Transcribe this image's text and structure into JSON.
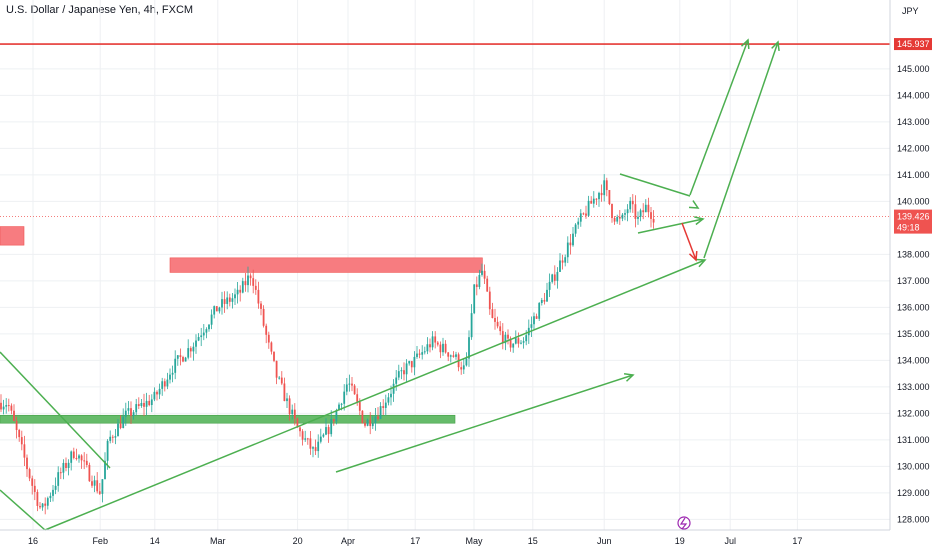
{
  "header": {
    "title": "U.S. Dollar / Japanese Yen, 4h, FXCM"
  },
  "axis": {
    "currency": "JPY"
  },
  "price_tags": {
    "resistance": "145.937",
    "current": "139.426",
    "countdown": "49:18"
  },
  "colors": {
    "up": "#26a69a",
    "down": "#ef5350",
    "green_draw": "#4caf50",
    "red_draw": "#e53935",
    "red_zone": "#f77c80",
    "green_zone": "#66bb6a",
    "grid": "#eef0f3",
    "current_tag": "#ef5350",
    "resistance_tag": "#e53935"
  },
  "icons": {
    "event_marker": "lightning-icon"
  },
  "chart_data": {
    "type": "candlestick",
    "ylim": [
      127.6,
      147.6
    ],
    "y_ticks": [
      "145.000",
      "144.000",
      "143.000",
      "142.000",
      "141.000",
      "140.000",
      "138.000",
      "137.000",
      "136.000",
      "135.000",
      "134.000",
      "133.000",
      "132.000",
      "131.000",
      "130.000",
      "129.000",
      "128.000"
    ],
    "x_ticks": [
      "16",
      "Feb",
      "14",
      "Mar",
      "20",
      "Apr",
      "17",
      "May",
      "15",
      "Jun",
      "19",
      "Jul",
      "17"
    ],
    "resistance_level": 145.937,
    "current_price": 139.426,
    "trend_path": [
      {
        "x": "Jan 10",
        "y": 132.4
      },
      {
        "x": "Jan 16",
        "y": 129.2
      },
      {
        "x": "Jan 18",
        "y": 128.3
      },
      {
        "x": "Jan 22",
        "y": 129.6
      },
      {
        "x": "Jan 26",
        "y": 130.6
      },
      {
        "x": "Feb 1",
        "y": 129.0
      },
      {
        "x": "Feb 3",
        "y": 131.0
      },
      {
        "x": "Feb 7",
        "y": 131.9
      },
      {
        "x": "Feb 14",
        "y": 132.6
      },
      {
        "x": "Feb 18",
        "y": 133.7
      },
      {
        "x": "Feb 23",
        "y": 134.6
      },
      {
        "x": "Mar 1",
        "y": 136.0
      },
      {
        "x": "Mar 6",
        "y": 136.5
      },
      {
        "x": "Mar 9",
        "y": 137.3
      },
      {
        "x": "Mar 13",
        "y": 134.6
      },
      {
        "x": "Mar 15",
        "y": 133.4
      },
      {
        "x": "Mar 20",
        "y": 131.4
      },
      {
        "x": "Mar 24",
        "y": 130.5
      },
      {
        "x": "Mar 28",
        "y": 131.6
      },
      {
        "x": "Apr 1",
        "y": 133.2
      },
      {
        "x": "Apr 5",
        "y": 131.6
      },
      {
        "x": "Apr 8",
        "y": 132.0
      },
      {
        "x": "Apr 14",
        "y": 133.6
      },
      {
        "x": "Apr 17",
        "y": 134.0
      },
      {
        "x": "Apr 21",
        "y": 134.7
      },
      {
        "x": "Apr 26",
        "y": 134.2
      },
      {
        "x": "Apr 29",
        "y": 133.6
      },
      {
        "x": "May 1",
        "y": 136.6
      },
      {
        "x": "May 3",
        "y": 137.4
      },
      {
        "x": "May 5",
        "y": 135.6
      },
      {
        "x": "May 9",
        "y": 134.6
      },
      {
        "x": "May 13",
        "y": 134.8
      },
      {
        "x": "May 15",
        "y": 135.5
      },
      {
        "x": "May 19",
        "y": 136.8
      },
      {
        "x": "May 23",
        "y": 138.2
      },
      {
        "x": "May 26",
        "y": 139.2
      },
      {
        "x": "May 30",
        "y": 140.2
      },
      {
        "x": "Jun 1",
        "y": 140.6
      },
      {
        "x": "Jun 3",
        "y": 139.5
      },
      {
        "x": "Jun 5",
        "y": 139.2
      },
      {
        "x": "Jun 7",
        "y": 139.9
      },
      {
        "x": "Jun 9",
        "y": 139.3
      },
      {
        "x": "Jun 11",
        "y": 139.8
      },
      {
        "x": "Jun 13",
        "y": 139.4
      }
    ]
  }
}
